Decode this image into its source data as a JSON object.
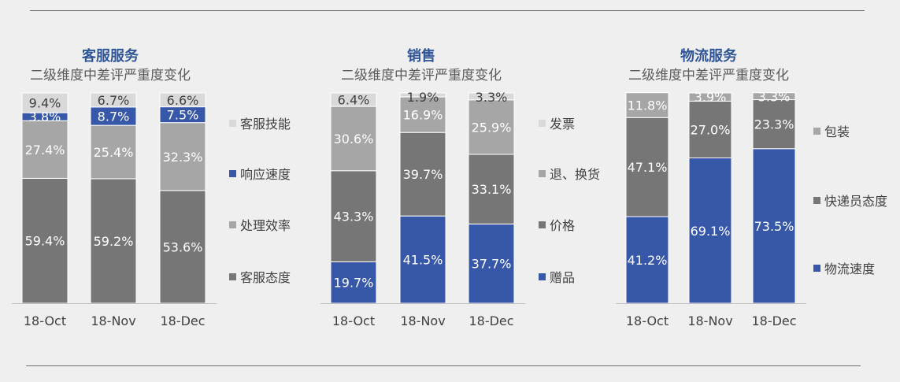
{
  "colors": {
    "background": "#efefef",
    "title_blue": "#2f5597",
    "subtitle_gray": "#595959",
    "axis_line": "#bfbfbf",
    "label_dark": "#404040",
    "series_palette": {
      "lightest": "#d9d9d9",
      "blue": "#3757a8",
      "light_gray": "#a6a6a6",
      "mid_gray": "#808080",
      "dark_gray": "#767676"
    }
  },
  "chart_data": [
    {
      "type": "bar",
      "stacked": true,
      "percent": true,
      "title": "客服服务",
      "subtitle": "二级维度中差评严重度变化",
      "categories": [
        "18-Oct",
        "18-Nov",
        "18-Dec"
      ],
      "series": [
        {
          "name": "客服态度",
          "color": "#767676",
          "values": [
            59.4,
            59.2,
            53.6
          ],
          "labels": [
            "59.4%",
            "59.2%",
            "53.6%"
          ]
        },
        {
          "name": "处理效率",
          "color": "#a6a6a6",
          "values": [
            27.4,
            25.4,
            32.3
          ],
          "labels": [
            "27.4%",
            "25.4%",
            "32.3%"
          ]
        },
        {
          "name": "响应速度",
          "color": "#3757a8",
          "values": [
            3.8,
            8.7,
            7.5
          ],
          "labels": [
            "3.8%",
            "8.7%",
            "7.5%"
          ]
        },
        {
          "name": "客服技能",
          "color": "#d9d9d9",
          "values": [
            9.4,
            6.7,
            6.6
          ],
          "labels": [
            "9.4%",
            "6.7%",
            "6.6%"
          ]
        }
      ],
      "legend_order": [
        "客服技能",
        "响应速度",
        "处理效率",
        "客服态度"
      ],
      "legend_position": "right",
      "ylim": [
        0,
        100
      ]
    },
    {
      "type": "bar",
      "stacked": true,
      "percent": true,
      "title": "销售",
      "subtitle": "二级维度中差评严重度变化",
      "categories": [
        "18-Oct",
        "18-Nov",
        "18-Dec"
      ],
      "series": [
        {
          "name": "赠品",
          "color": "#3757a8",
          "values": [
            19.7,
            41.5,
            37.7
          ],
          "labels": [
            "19.7%",
            "41.5%",
            "37.7%"
          ]
        },
        {
          "name": "价格",
          "color": "#767676",
          "values": [
            43.3,
            39.7,
            33.1
          ],
          "labels": [
            "43.3%",
            "39.7%",
            "33.1%"
          ]
        },
        {
          "name": "退、换货",
          "color": "#a6a6a6",
          "values": [
            30.6,
            16.9,
            25.9
          ],
          "labels": [
            "30.6%",
            "16.9%",
            "25.9%"
          ]
        },
        {
          "name": "发票",
          "color": "#d9d9d9",
          "values": [
            6.4,
            1.9,
            3.3
          ],
          "labels": [
            "6.4%",
            "1.9%",
            "3.3%"
          ]
        }
      ],
      "legend_order": [
        "发票",
        "退、换货",
        "价格",
        "赠品"
      ],
      "legend_position": "right",
      "ylim": [
        0,
        100
      ]
    },
    {
      "type": "bar",
      "stacked": true,
      "percent": true,
      "title": "物流服务",
      "subtitle": "二级维度中差评严重度变化",
      "categories": [
        "18-Oct",
        "18-Nov",
        "18-Dec"
      ],
      "series": [
        {
          "name": "物流速度",
          "color": "#3757a8",
          "values": [
            41.2,
            69.1,
            73.5
          ],
          "labels": [
            "41.2%",
            "69.1%",
            "73.5%"
          ]
        },
        {
          "name": "快递员态度",
          "color": "#767676",
          "values": [
            47.1,
            27.0,
            23.3
          ],
          "labels": [
            "47.1%",
            "27.0%",
            "23.3%"
          ]
        },
        {
          "name": "包装",
          "color": "#a6a6a6",
          "values": [
            11.8,
            3.9,
            3.3
          ],
          "labels": [
            "11.8%",
            "3.9%",
            "3.3%"
          ]
        }
      ],
      "legend_order": [
        "包装",
        "快递员态度",
        "物流速度"
      ],
      "legend_position": "right",
      "ylim": [
        0,
        100
      ]
    }
  ]
}
